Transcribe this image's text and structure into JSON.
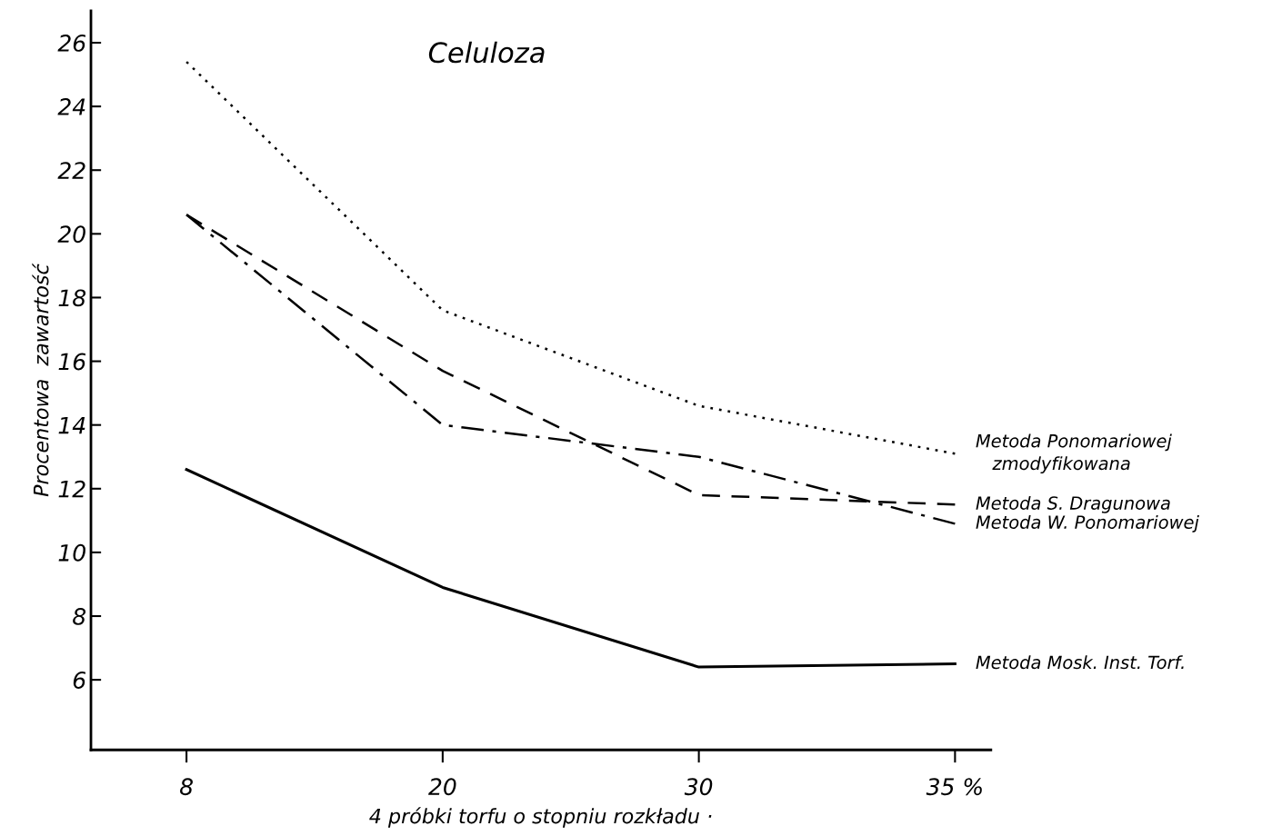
{
  "chart_data": {
    "type": "line",
    "title": "Celuloza",
    "xlabel": "4 próbki torfu o stopniu rozkładu ·",
    "ylabel": "Procentowa  zawartość",
    "categories": [
      "8",
      "20",
      "30",
      "35 %"
    ],
    "ylim": [
      3.8,
      27
    ],
    "yticks": [
      6,
      8,
      10,
      12,
      14,
      16,
      18,
      20,
      22,
      24,
      26
    ],
    "grid": false,
    "legend": false,
    "marker": "none",
    "series": [
      {
        "name": "Metoda Ponomariowej\n   zmodyfikowana",
        "color": "#000000",
        "line_style": "dotted",
        "values": [
          25.4,
          17.6,
          14.6,
          13.1
        ]
      },
      {
        "name": "Metoda S. Dragunowa",
        "color": "#000000",
        "line_style": "dashed",
        "values": [
          20.6,
          15.7,
          11.8,
          11.5
        ]
      },
      {
        "name": "Metoda W. Ponomariowej",
        "color": "#000000",
        "line_style": "dashdot",
        "values": [
          20.6,
          14.0,
          13.0,
          10.9
        ]
      },
      {
        "name": "Metoda Mosk. Inst. Torf.",
        "color": "#000000",
        "line_style": "solid",
        "values": [
          12.6,
          8.9,
          6.4,
          6.5
        ]
      }
    ]
  }
}
